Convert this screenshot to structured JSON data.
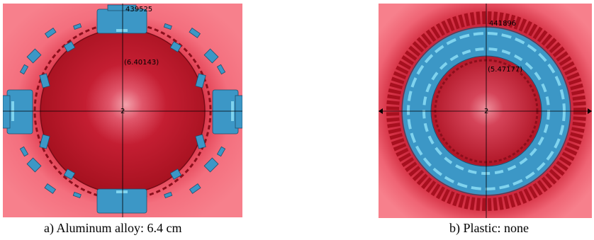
{
  "panels": [
    {
      "node_id": "439525",
      "value_label": "(6.40143)",
      "center_label": "2",
      "caption": "a) Aluminum alloy: 6.4 cm",
      "colors": {
        "background": "#f46f7e",
        "dark_red": "#b01526",
        "blue": "#3c97c6",
        "light_blue": "#7fd3ee"
      }
    },
    {
      "node_id": "441896",
      "value_label": "(5.47177)",
      "center_label": "2",
      "caption": "b) Plastic: none",
      "colors": {
        "background": "#f46f7e",
        "dark_red": "#b01526",
        "blue": "#3c97c6",
        "light_blue": "#7fd3ee"
      }
    }
  ]
}
